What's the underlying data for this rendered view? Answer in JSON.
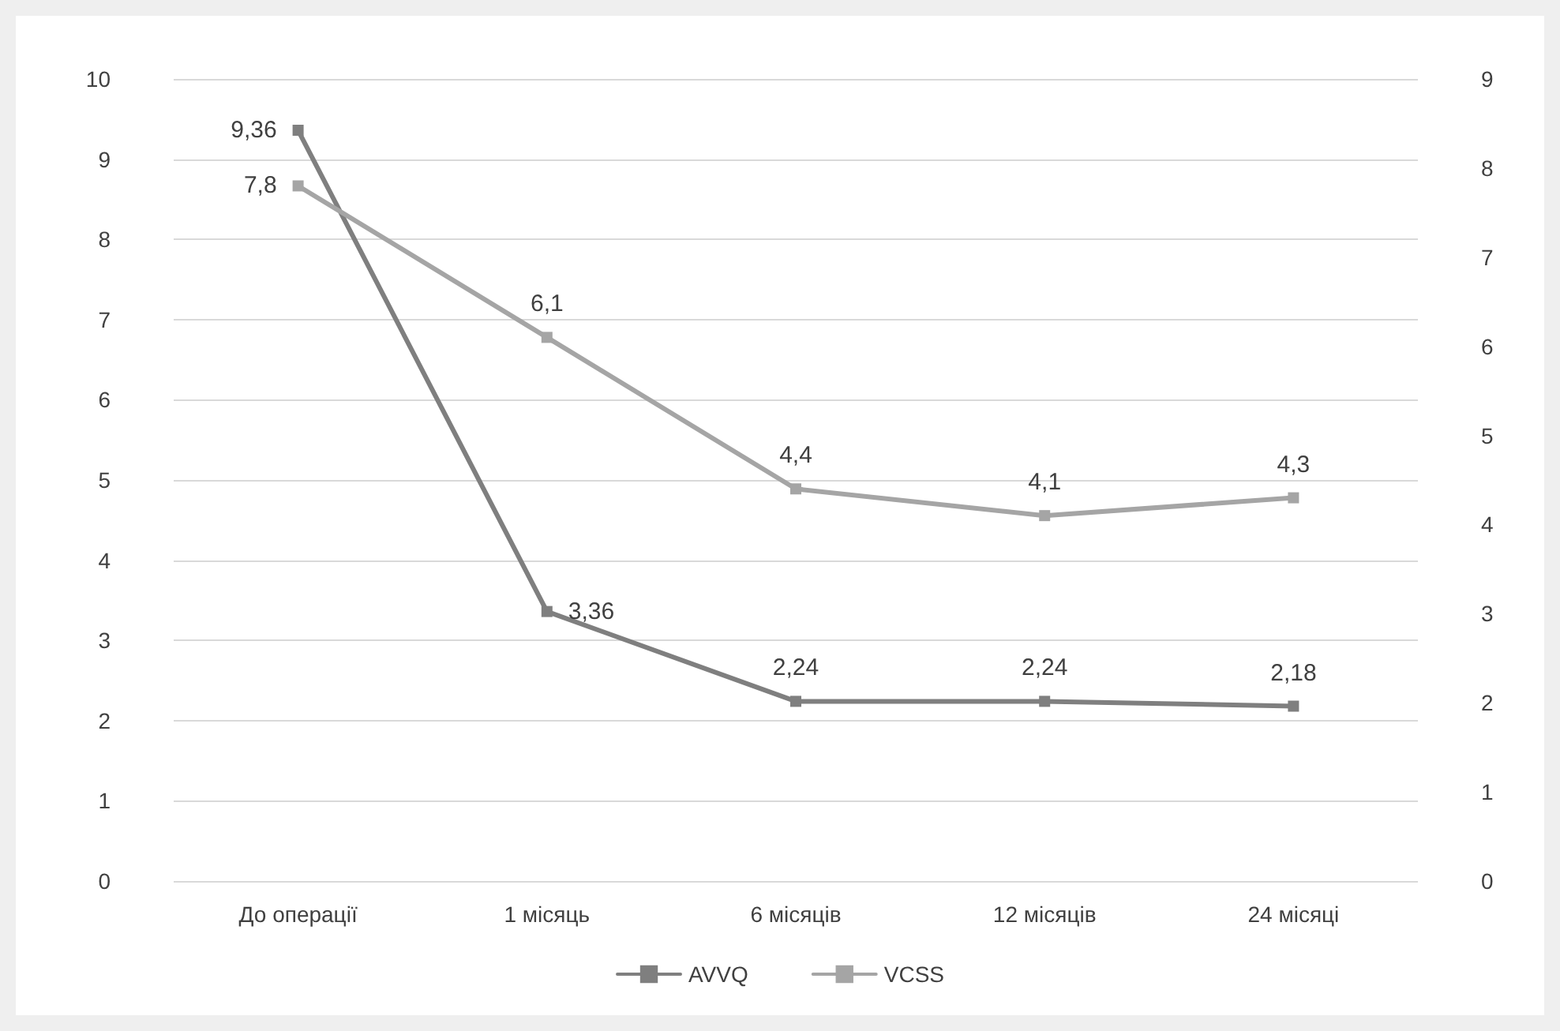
{
  "chart_data": {
    "type": "line",
    "categories": [
      "До операції",
      "1 місяць",
      "6 місяців",
      "12 місяців",
      "24 місяці"
    ],
    "series": [
      {
        "name": "AVVQ",
        "color": "#7f7f7f",
        "values": [
          9.36,
          3.36,
          2.24,
          2.24,
          2.18
        ],
        "value_labels": [
          "9,36",
          "3,36",
          "2,24",
          "2,24",
          "2,18"
        ]
      },
      {
        "name": "VCSS",
        "color": "#a5a5a5",
        "axis": "y2",
        "values": [
          7.8,
          6.1,
          4.4,
          4.1,
          4.3
        ],
        "value_labels": [
          "7,8",
          "6,1",
          "4,4",
          "4,1",
          "4,3"
        ]
      }
    ],
    "ylim": [
      0,
      10
    ],
    "yticks": [
      0,
      1,
      2,
      3,
      4,
      5,
      6,
      7,
      8,
      9,
      10
    ],
    "y2lim": [
      0,
      9
    ],
    "y2ticks": [
      0,
      1,
      2,
      3,
      4,
      5,
      6,
      7,
      8,
      9
    ],
    "grid": "y",
    "legend": "bottom",
    "marker": "square",
    "line_style": "solid"
  }
}
